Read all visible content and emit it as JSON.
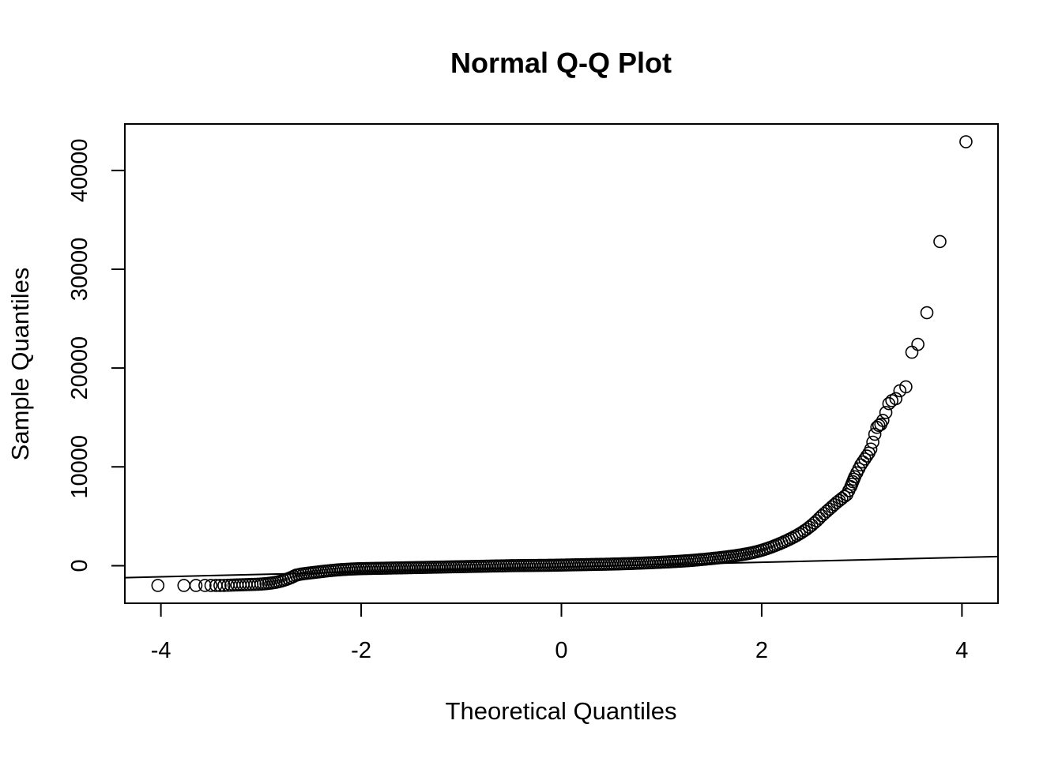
{
  "chart_data": {
    "type": "scatter",
    "title": "Normal Q-Q Plot",
    "xlabel": "Theoretical Quantiles",
    "ylabel": "Sample Quantiles",
    "xlim": [
      -4.36,
      4.36
    ],
    "ylim": [
      -3800,
      44700
    ],
    "x_ticks": [
      -4,
      -2,
      0,
      2,
      4
    ],
    "x_tick_labels": [
      "-4",
      "-2",
      "0",
      "2",
      "4"
    ],
    "y_ticks": [
      0,
      10000,
      20000,
      30000,
      40000
    ],
    "y_tick_labels": [
      "0",
      "10000",
      "20000",
      "30000",
      "40000"
    ],
    "grid": false,
    "legend": "none",
    "marker": "open-circle",
    "reference_line": {
      "intercept": -145,
      "slope": 245
    },
    "points": {
      "x": [
        -4.03,
        -3.77,
        -3.65,
        -3.56,
        -3.5,
        -3.45,
        -3.41,
        -3.37,
        -3.33,
        -3.3,
        -3.27,
        -3.24,
        -3.21,
        -3.18,
        -3.15,
        -3.12,
        -3.09,
        -3.06,
        -3.03,
        -3.0,
        -2.95,
        -2.9,
        -2.85,
        -2.8,
        -2.75,
        -2.7,
        -2.65,
        -2.6,
        -2.55,
        -2.5,
        -2.45,
        -2.4,
        -2.35,
        -2.3,
        -2.25,
        -2.2,
        -2.15,
        -2.1,
        -2.05,
        -2.0,
        -1.9,
        -1.8,
        -1.7,
        -1.6,
        -1.5,
        -1.4,
        -1.3,
        -1.2,
        -1.1,
        -1.0,
        -0.9,
        -0.8,
        -0.7,
        -0.6,
        -0.5,
        -0.4,
        -0.3,
        -0.2,
        -0.1,
        0.0,
        0.1,
        0.2,
        0.3,
        0.4,
        0.5,
        0.6,
        0.7,
        0.8,
        0.9,
        1.0,
        1.1,
        1.2,
        1.3,
        1.4,
        1.5,
        1.6,
        1.7,
        1.75,
        1.8,
        1.85,
        1.9,
        1.95,
        2.0,
        2.05,
        2.1,
        2.15,
        2.2,
        2.25,
        2.3,
        2.35,
        2.4,
        2.45,
        2.5,
        2.55,
        2.6,
        2.65,
        2.7,
        2.75,
        2.8,
        2.85,
        2.87,
        2.89,
        2.91,
        2.93,
        2.95,
        2.97,
        2.99,
        3.01,
        3.03,
        3.05,
        3.07,
        3.09,
        3.11,
        3.13,
        3.15,
        3.17,
        3.19,
        3.21,
        3.24,
        3.27,
        3.3,
        3.34,
        3.38,
        3.44,
        3.5,
        3.56,
        3.65,
        3.78,
        4.04
      ],
      "y": [
        -2000,
        -2000,
        -2000,
        -2000,
        -2000,
        -2000,
        -2000,
        -2000,
        -1980,
        -1970,
        -1960,
        -1950,
        -1940,
        -1930,
        -1920,
        -1910,
        -1900,
        -1890,
        -1880,
        -1860,
        -1820,
        -1760,
        -1680,
        -1560,
        -1400,
        -1200,
        -960,
        -850,
        -780,
        -720,
        -660,
        -600,
        -540,
        -490,
        -440,
        -400,
        -370,
        -340,
        -320,
        -300,
        -280,
        -260,
        -240,
        -220,
        -200,
        -180,
        -160,
        -140,
        -120,
        -100,
        -80,
        -60,
        -40,
        -20,
        0,
        10,
        20,
        30,
        40,
        60,
        80,
        100,
        120,
        140,
        160,
        190,
        220,
        260,
        300,
        350,
        400,
        460,
        530,
        620,
        720,
        830,
        960,
        1030,
        1110,
        1200,
        1300,
        1420,
        1560,
        1720,
        1900,
        2100,
        2310,
        2540,
        2790,
        3060,
        3360,
        3700,
        4100,
        4550,
        5050,
        5500,
        5950,
        6400,
        6800,
        7200,
        7600,
        8000,
        8500,
        9000,
        9400,
        9800,
        10200,
        10500,
        10800,
        11100,
        11400,
        11800,
        12500,
        13300,
        14000,
        14200,
        14300,
        14700,
        15500,
        16400,
        16700,
        16900,
        17700,
        18100,
        21600,
        22400,
        25600,
        32800,
        42900
      ]
    }
  }
}
